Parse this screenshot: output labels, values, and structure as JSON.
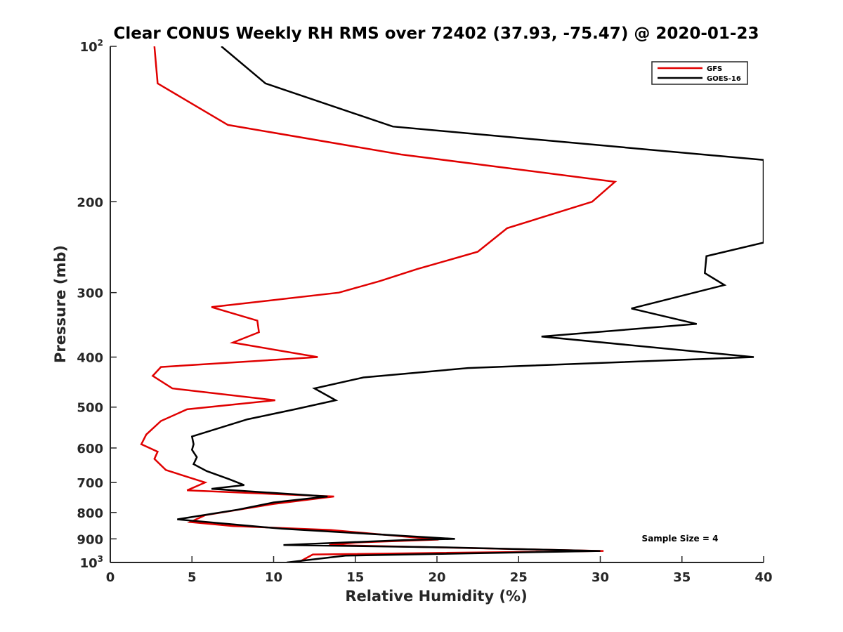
{
  "chart_data": {
    "type": "line",
    "title": "Clear CONUS Weekly RH RMS over 72402 (37.93, -75.47) @ 2020-01-23",
    "xlabel": "Relative Humidity (%)",
    "ylabel": "Pressure (mb)",
    "xlim": [
      0,
      40
    ],
    "ylim": [
      100,
      1000
    ],
    "yscale": "log",
    "yreversed": true,
    "xticks": [
      0,
      5,
      10,
      15,
      20,
      25,
      30,
      35,
      40
    ],
    "yticks": [
      {
        "value": 100,
        "base": "10",
        "exp": "2"
      },
      {
        "value": 200,
        "label": "200"
      },
      {
        "value": 300,
        "label": "300"
      },
      {
        "value": 400,
        "label": "400"
      },
      {
        "value": 500,
        "label": "500"
      },
      {
        "value": 600,
        "label": "600"
      },
      {
        "value": 700,
        "label": "700"
      },
      {
        "value": 800,
        "label": "800"
      },
      {
        "value": 900,
        "label": "900"
      },
      {
        "value": 1000,
        "base": "10",
        "exp": "3"
      }
    ],
    "legend": {
      "location": "top-right"
    },
    "annotation": "Sample Size = 4",
    "series": [
      {
        "name": "GFS",
        "color": "#e00000",
        "x": [
          2.7,
          2.9,
          7.2,
          17.8,
          30.9,
          29.5,
          24.3,
          22.5,
          18.8,
          16.5,
          14.0,
          6.2,
          9.0,
          9.1,
          7.5,
          12.7,
          3.1,
          2.6,
          3.8,
          10.1,
          4.7,
          3.1,
          2.2,
          1.9,
          2.9,
          2.7,
          3.4,
          5.8,
          4.7,
          13.7,
          10.0,
          5.8,
          4.9,
          7.5,
          13.5,
          20.1,
          15.0,
          13.4,
          30.2,
          12.4,
          11.5
        ],
        "y": [
          100,
          118,
          142,
          162,
          183,
          200,
          225,
          250,
          270,
          285,
          300,
          320,
          340,
          358,
          375,
          400,
          418,
          435,
          460,
          485,
          505,
          532,
          565,
          590,
          610,
          630,
          662,
          700,
          725,
          745,
          770,
          810,
          835,
          850,
          865,
          903,
          915,
          925,
          950,
          965,
          1000
        ]
      },
      {
        "name": "GOES-16",
        "color": "#000000",
        "x": [
          6.8,
          9.5,
          17.3,
          40.0,
          40.0,
          36.5,
          36.4,
          37.6,
          31.9,
          35.9,
          26.4,
          39.4,
          21.9,
          15.5,
          12.5,
          13.8,
          11.3,
          8.4,
          5.0,
          5.1,
          5.0,
          5.3,
          5.1,
          5.9,
          7.3,
          8.2,
          6.2,
          13.3,
          10.0,
          7.8,
          4.1,
          10.5,
          21.1,
          18.0,
          10.6,
          20.5,
          30.0,
          14.4,
          10.8
        ],
        "y": [
          100,
          118,
          143,
          166,
          240,
          255,
          275,
          290,
          322,
          345,
          365,
          400,
          420,
          438,
          460,
          485,
          505,
          528,
          570,
          590,
          605,
          625,
          645,
          665,
          690,
          708,
          720,
          745,
          765,
          790,
          825,
          860,
          900,
          905,
          925,
          935,
          950,
          970,
          1000
        ]
      }
    ]
  }
}
